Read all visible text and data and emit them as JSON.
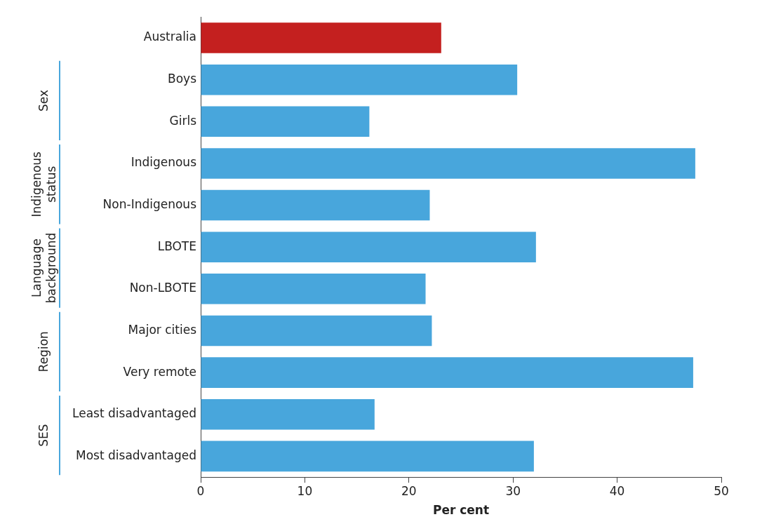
{
  "chart_data": {
    "type": "bar",
    "orientation": "horizontal",
    "xlabel": "Per cent",
    "categories": [
      "Australia",
      "Boys",
      "Girls",
      "Indigenous",
      "Non-Indigenous",
      "LBOTE",
      "Non-LBOTE",
      "Major cities",
      "Very remote",
      "Least disadvantaged",
      "Most disadvantaged"
    ],
    "values": [
      23.1,
      30.4,
      16.2,
      47.5,
      22.0,
      32.2,
      21.6,
      22.2,
      47.3,
      16.7,
      32.0
    ],
    "colors": [
      "#c4201f",
      "#48a6dc",
      "#48a6dc",
      "#48a6dc",
      "#48a6dc",
      "#48a6dc",
      "#48a6dc",
      "#48a6dc",
      "#48a6dc",
      "#48a6dc",
      "#48a6dc"
    ],
    "xlim": [
      0,
      50
    ],
    "xticks": [
      0,
      10,
      20,
      30,
      40,
      50
    ],
    "grid": false,
    "legend": false,
    "annotations": [
      "Sex",
      "Indigenous\nstatus",
      "Language\nbackground",
      "Region",
      "SES"
    ]
  }
}
